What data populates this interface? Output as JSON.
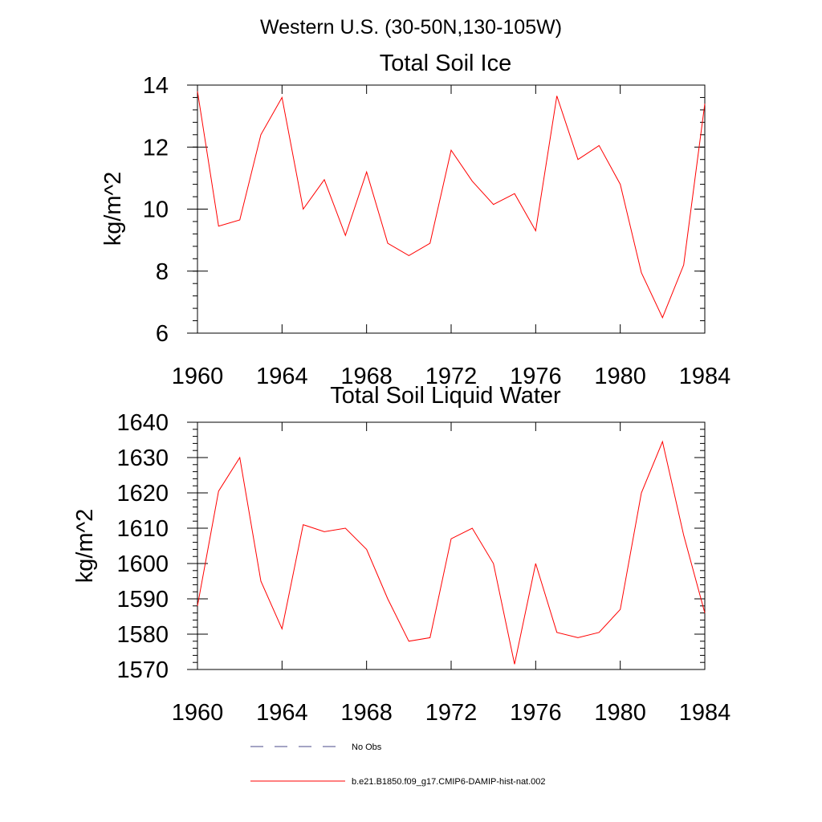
{
  "figure": {
    "title": "Western U.S. (30-50N,130-105W)"
  },
  "chart_data": [
    {
      "type": "line",
      "title": "Total Soil Ice",
      "xlabel": "",
      "ylabel": "kg/m^2",
      "xlim": [
        1960,
        1984
      ],
      "ylim": [
        6,
        14
      ],
      "xticks": [
        1960,
        1964,
        1968,
        1972,
        1976,
        1980,
        1984
      ],
      "yticks": [
        6,
        8,
        10,
        12,
        14
      ],
      "x": [
        1960,
        1961,
        1962,
        1963,
        1964,
        1965,
        1966,
        1967,
        1968,
        1969,
        1970,
        1971,
        1972,
        1973,
        1974,
        1975,
        1976,
        1977,
        1978,
        1979,
        1980,
        1981,
        1982,
        1983,
        1984
      ],
      "series": [
        {
          "name": "b.e21.B1850.f09_g17.CMIP6-DAMIP-hist-nat.002",
          "color": "#ff0000",
          "values": [
            13.8,
            9.45,
            9.65,
            12.4,
            13.6,
            10.0,
            10.95,
            9.15,
            11.2,
            8.9,
            8.5,
            8.9,
            11.9,
            10.9,
            10.15,
            10.5,
            9.3,
            13.65,
            11.6,
            12.05,
            10.8,
            7.95,
            6.5,
            8.2,
            13.4
          ]
        }
      ],
      "grid": false
    },
    {
      "type": "line",
      "title": "Total Soil Liquid Water",
      "xlabel": "",
      "ylabel": "kg/m^2",
      "xlim": [
        1960,
        1984
      ],
      "ylim": [
        1570,
        1640
      ],
      "xticks": [
        1960,
        1964,
        1968,
        1972,
        1976,
        1980,
        1984
      ],
      "yticks": [
        1570,
        1580,
        1590,
        1600,
        1610,
        1620,
        1630,
        1640
      ],
      "x": [
        1960,
        1961,
        1962,
        1963,
        1964,
        1965,
        1966,
        1967,
        1968,
        1969,
        1970,
        1971,
        1972,
        1973,
        1974,
        1975,
        1976,
        1977,
        1978,
        1979,
        1980,
        1981,
        1982,
        1983,
        1984
      ],
      "series": [
        {
          "name": "b.e21.B1850.f09_g17.CMIP6-DAMIP-hist-nat.002",
          "color": "#ff0000",
          "values": [
            1588,
            1620.5,
            1630,
            1595,
            1581.5,
            1611,
            1609,
            1610,
            1604,
            1590,
            1578,
            1579,
            1607,
            1610,
            1600,
            1571.5,
            1600,
            1580.5,
            1579,
            1580.5,
            1587,
            1620,
            1634.5,
            1608,
            1586
          ]
        }
      ],
      "grid": false
    }
  ],
  "legend": {
    "placement": "bottom",
    "items": [
      {
        "label": "No Obs",
        "style": "dashed",
        "color": "#4a4a8a"
      },
      {
        "label": "b.e21.B1850.f09_g17.CMIP6-DAMIP-hist-nat.002",
        "style": "solid",
        "color": "#ff0000"
      }
    ]
  }
}
